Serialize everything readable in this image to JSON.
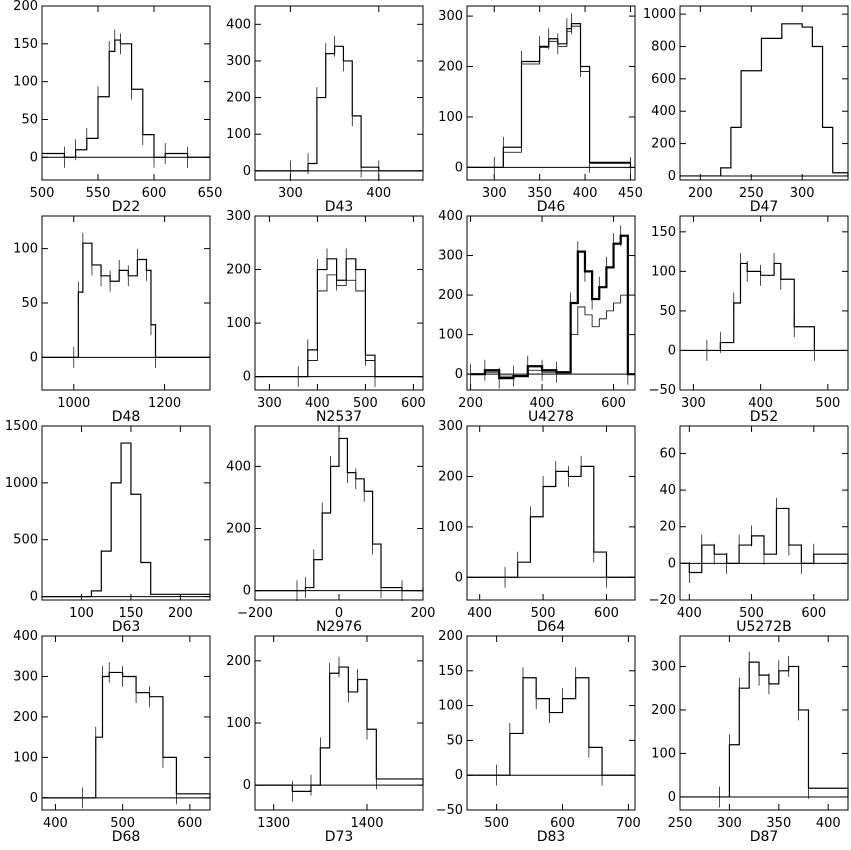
{
  "chart_data": [
    {
      "type": "line",
      "label": "D22",
      "xlim": [
        500,
        650
      ],
      "ylim": [
        -30,
        200
      ],
      "xticks": [
        500,
        550,
        600,
        650
      ],
      "yticks": [
        0,
        50,
        100,
        150,
        200
      ],
      "x": [
        500,
        520,
        530,
        540,
        550,
        560,
        565,
        570,
        580,
        590,
        600,
        610,
        630,
        650
      ],
      "y": [
        5,
        0,
        10,
        25,
        80,
        140,
        155,
        150,
        90,
        30,
        0,
        5,
        0,
        0
      ]
    },
    {
      "type": "line",
      "label": "D43",
      "xlim": [
        260,
        450
      ],
      "ylim": [
        -25,
        450
      ],
      "xticks": [
        300,
        400
      ],
      "yticks": [
        0,
        100,
        200,
        300,
        400
      ],
      "x": [
        260,
        300,
        320,
        330,
        340,
        350,
        360,
        370,
        380,
        400,
        450
      ],
      "y": [
        0,
        0,
        20,
        200,
        320,
        340,
        300,
        150,
        10,
        0,
        0
      ]
    },
    {
      "type": "line",
      "label": "D46",
      "xlim": [
        270,
        455
      ],
      "ylim": [
        -25,
        320
      ],
      "xticks": [
        300,
        350,
        400,
        450
      ],
      "yticks": [
        0,
        100,
        200,
        300
      ],
      "x": [
        270,
        300,
        310,
        330,
        350,
        360,
        370,
        380,
        385,
        395,
        405,
        450
      ],
      "y": [
        0,
        0,
        40,
        210,
        240,
        255,
        245,
        275,
        285,
        200,
        10,
        0
      ],
      "y2": [
        0,
        0,
        30,
        205,
        238,
        250,
        240,
        270,
        280,
        190,
        8,
        0
      ]
    },
    {
      "type": "line",
      "label": "D47",
      "xlim": [
        180,
        345
      ],
      "ylim": [
        -25,
        1050
      ],
      "xticks": [
        200,
        250,
        300
      ],
      "yticks": [
        0,
        200,
        400,
        600,
        800,
        1000
      ],
      "x": [
        180,
        200,
        220,
        230,
        240,
        260,
        280,
        300,
        310,
        320,
        330,
        345
      ],
      "y": [
        0,
        0,
        50,
        300,
        650,
        850,
        940,
        920,
        800,
        300,
        20,
        0
      ]
    },
    {
      "type": "line",
      "label": "D48",
      "xlim": [
        930,
        1300
      ],
      "ylim": [
        -30,
        130
      ],
      "xticks": [
        1000,
        1200
      ],
      "yticks": [
        0,
        50,
        100
      ],
      "x": [
        930,
        1000,
        1010,
        1020,
        1040,
        1060,
        1080,
        1100,
        1120,
        1140,
        1160,
        1170,
        1180,
        1300
      ],
      "y": [
        0,
        0,
        60,
        105,
        85,
        75,
        70,
        80,
        75,
        90,
        80,
        30,
        0,
        0
      ]
    },
    {
      "type": "line",
      "label": "N2537",
      "xlim": [
        270,
        620
      ],
      "ylim": [
        -25,
        300
      ],
      "xticks": [
        300,
        400,
        500,
        600
      ],
      "yticks": [
        0,
        100,
        200,
        300
      ],
      "x": [
        270,
        360,
        380,
        400,
        420,
        440,
        460,
        480,
        500,
        520,
        620
      ],
      "y": [
        0,
        0,
        50,
        200,
        220,
        180,
        220,
        200,
        40,
        0,
        0
      ],
      "y2": [
        0,
        0,
        30,
        160,
        190,
        170,
        180,
        160,
        30,
        0,
        0
      ]
    },
    {
      "type": "line",
      "label": "U4278",
      "xlim": [
        190,
        660
      ],
      "ylim": [
        -40,
        400
      ],
      "xticks": [
        200,
        400,
        600
      ],
      "yticks": [
        0,
        100,
        200,
        300,
        400
      ],
      "x": [
        200,
        240,
        280,
        320,
        360,
        400,
        440,
        480,
        500,
        520,
        540,
        560,
        580,
        600,
        620,
        640,
        660
      ],
      "y": [
        0,
        10,
        -10,
        -5,
        20,
        10,
        5,
        180,
        310,
        260,
        190,
        220,
        270,
        330,
        350,
        0,
        0
      ],
      "y2": [
        0,
        5,
        -5,
        -3,
        10,
        5,
        3,
        100,
        170,
        150,
        120,
        140,
        160,
        180,
        200,
        0,
        0
      ]
    },
    {
      "type": "line",
      "label": "D52",
      "xlim": [
        280,
        530
      ],
      "ylim": [
        -50,
        170
      ],
      "xticks": [
        300,
        400,
        500
      ],
      "yticks": [
        -50,
        0,
        50,
        100,
        150
      ],
      "x": [
        280,
        320,
        340,
        360,
        370,
        380,
        400,
        420,
        430,
        450,
        480,
        530
      ],
      "y": [
        0,
        0,
        10,
        60,
        110,
        100,
        95,
        110,
        90,
        30,
        0,
        0
      ]
    },
    {
      "type": "line",
      "label": "D63",
      "xlim": [
        60,
        230
      ],
      "ylim": [
        -30,
        1500
      ],
      "xticks": [
        100,
        150,
        200
      ],
      "yticks": [
        0,
        500,
        1000,
        1500
      ],
      "x": [
        60,
        100,
        110,
        120,
        130,
        140,
        150,
        160,
        170,
        230
      ],
      "y": [
        0,
        0,
        50,
        400,
        1000,
        1350,
        900,
        300,
        20,
        0
      ]
    },
    {
      "type": "line",
      "label": "N2976",
      "xlim": [
        -200,
        200
      ],
      "ylim": [
        -30,
        530
      ],
      "xticks": [
        -200,
        0,
        200
      ],
      "yticks": [
        0,
        200,
        400
      ],
      "x": [
        -200,
        -100,
        -80,
        -60,
        -40,
        -20,
        0,
        20,
        40,
        60,
        80,
        100,
        150,
        200
      ],
      "y": [
        0,
        0,
        10,
        100,
        250,
        400,
        490,
        380,
        360,
        320,
        150,
        10,
        0,
        10
      ]
    },
    {
      "type": "line",
      "label": "D64",
      "xlim": [
        380,
        645
      ],
      "ylim": [
        -45,
        300
      ],
      "xticks": [
        400,
        500,
        600
      ],
      "yticks": [
        0,
        100,
        200,
        300
      ],
      "x": [
        380,
        440,
        460,
        480,
        500,
        520,
        540,
        560,
        580,
        600,
        645
      ],
      "y": [
        0,
        0,
        30,
        120,
        180,
        210,
        200,
        220,
        50,
        0,
        0
      ]
    },
    {
      "type": "line",
      "label": "U5272B",
      "xlim": [
        385,
        655
      ],
      "ylim": [
        -20,
        75
      ],
      "xticks": [
        400,
        500,
        600
      ],
      "yticks": [
        -20,
        0,
        20,
        40,
        60
      ],
      "x": [
        385,
        400,
        420,
        440,
        460,
        480,
        500,
        520,
        540,
        560,
        580,
        600,
        655
      ],
      "y": [
        0,
        -5,
        10,
        5,
        0,
        10,
        15,
        5,
        30,
        10,
        0,
        5,
        0
      ]
    },
    {
      "type": "line",
      "label": "D68",
      "xlim": [
        380,
        630
      ],
      "ylim": [
        -30,
        400
      ],
      "xticks": [
        400,
        500,
        600
      ],
      "yticks": [
        0,
        100,
        200,
        300,
        400
      ],
      "x": [
        380,
        440,
        460,
        470,
        480,
        500,
        520,
        540,
        560,
        580,
        630
      ],
      "y": [
        0,
        0,
        150,
        300,
        310,
        300,
        260,
        250,
        100,
        10,
        0
      ]
    },
    {
      "type": "line",
      "label": "D73",
      "xlim": [
        1280,
        1460
      ],
      "ylim": [
        -40,
        240
      ],
      "xticks": [
        1300,
        1400
      ],
      "yticks": [
        0,
        100,
        200
      ],
      "x": [
        1280,
        1320,
        1340,
        1350,
        1360,
        1370,
        1380,
        1390,
        1400,
        1410,
        1460
      ],
      "y": [
        0,
        -10,
        0,
        60,
        180,
        190,
        150,
        170,
        90,
        10,
        0
      ]
    },
    {
      "type": "line",
      "label": "D83",
      "xlim": [
        455,
        710
      ],
      "ylim": [
        -50,
        200
      ],
      "xticks": [
        500,
        600,
        700
      ],
      "yticks": [
        -50,
        0,
        50,
        100,
        150,
        200
      ],
      "x": [
        455,
        500,
        520,
        540,
        560,
        580,
        600,
        620,
        640,
        660,
        710
      ],
      "y": [
        0,
        0,
        60,
        140,
        110,
        90,
        110,
        140,
        40,
        0,
        0
      ]
    },
    {
      "type": "line",
      "label": "D87",
      "xlim": [
        250,
        420
      ],
      "ylim": [
        -30,
        370
      ],
      "xticks": [
        250,
        300,
        350,
        400
      ],
      "yticks": [
        0,
        100,
        200,
        300
      ],
      "x": [
        250,
        290,
        300,
        310,
        320,
        330,
        340,
        350,
        360,
        370,
        380,
        420
      ],
      "y": [
        0,
        0,
        120,
        250,
        310,
        280,
        260,
        290,
        300,
        200,
        20,
        0
      ]
    }
  ]
}
